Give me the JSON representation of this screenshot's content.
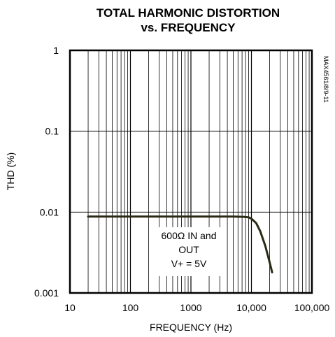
{
  "chart_data": {
    "type": "line",
    "title_lines": [
      "TOTAL HARMONIC DISTORTION",
      "vs. FREQUENCY"
    ],
    "xlabel": "FREQUENCY (Hz)",
    "ylabel": "THD (%)",
    "x_scale": "log",
    "y_scale": "log",
    "xlim": [
      10,
      100000
    ],
    "ylim": [
      0.001,
      1
    ],
    "x_ticks": [
      {
        "value": 10,
        "label": "10"
      },
      {
        "value": 100,
        "label": "100"
      },
      {
        "value": 1000,
        "label": "1000"
      },
      {
        "value": 10000,
        "label": "10,000"
      },
      {
        "value": 100000,
        "label": "100,000"
      }
    ],
    "y_ticks": [
      {
        "value": 1,
        "label": "1"
      },
      {
        "value": 0.1,
        "label": "0.1"
      },
      {
        "value": 0.01,
        "label": "0.01"
      },
      {
        "value": 0.001,
        "label": "0.001"
      }
    ],
    "grid": true,
    "series": [
      {
        "color": "#2a2a14",
        "x": [
          20,
          50,
          100,
          200,
          500,
          1000,
          2000,
          5000,
          8000,
          9000,
          10000,
          12000,
          14000,
          17000,
          20000,
          22000
        ],
        "y": [
          0.0088,
          0.0088,
          0.0088,
          0.0088,
          0.0088,
          0.0088,
          0.0088,
          0.0088,
          0.0087,
          0.0086,
          0.0083,
          0.0073,
          0.0058,
          0.0038,
          0.0024,
          0.0018
        ]
      }
    ],
    "annotation_lines": [
      "600Ω IN and",
      "OUT",
      "V+ = 5V"
    ],
    "part_number": "MAX4561/8/9-11"
  }
}
